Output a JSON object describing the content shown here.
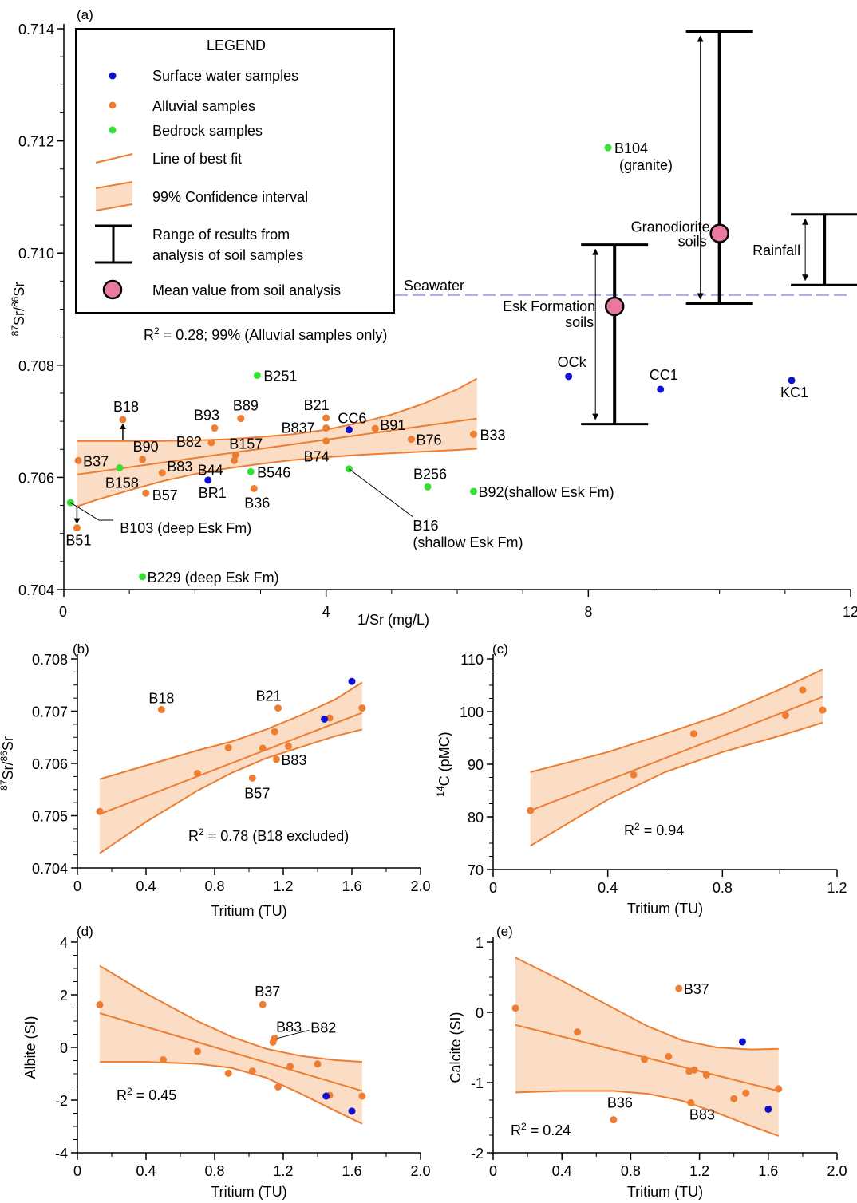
{
  "colors": {
    "orange": "#ED7D31",
    "blue": "#1010D0",
    "green": "#33E033",
    "band": "#FBDCC4",
    "pink": "#E9799E",
    "seawater": "#A9A9EE",
    "seawater_text": "#2233AA"
  },
  "chart_data": [
    {
      "panel_label": "(a)",
      "type": "scatter",
      "xlabel": "1/Sr (mg/L)",
      "ylabel": "87Sr/86Sr",
      "xlim": [
        0,
        12
      ],
      "ylim": [
        0.704,
        0.714
      ],
      "xticks": [
        "0",
        "4",
        "8",
        "12"
      ],
      "yticks": [
        "0.704",
        "0.706",
        "0.708",
        "0.710",
        "0.712",
        "0.714"
      ],
      "r2_text": "R² = 0.28; 99% (Alluvial samples only)",
      "legend": {
        "title": "LEGEND",
        "items": [
          "Surface water samples",
          "Alluvial samples",
          "Bedrock samples",
          "Line of best fit",
          "99% Confidence interval",
          "Range of results from",
          "analysis of soil samples",
          "Mean value from soil analysis"
        ]
      },
      "reference_line": {
        "label": "Seawater",
        "y": 0.70925
      },
      "fit": {
        "x": [
          0.2,
          6.3
        ],
        "y": [
          0.70605,
          0.70705
        ]
      },
      "band": {
        "x": [
          0.2,
          0.5,
          1,
          1.5,
          2,
          2.5,
          3,
          3.5,
          4,
          4.5,
          5,
          5.5,
          6,
          6.3
        ],
        "upper": [
          0.70665,
          0.70665,
          0.70665,
          0.70665,
          0.70666,
          0.70668,
          0.70672,
          0.70677,
          0.70685,
          0.70697,
          0.70712,
          0.70732,
          0.70757,
          0.70776
        ],
        "lower": [
          0.70548,
          0.7056,
          0.70577,
          0.70593,
          0.70606,
          0.70616,
          0.70624,
          0.70631,
          0.70636,
          0.7064,
          0.70643,
          0.70646,
          0.70649,
          0.70651
        ]
      },
      "surface_water": [
        {
          "x": 2.2,
          "y": 0.70595,
          "label": "BR1"
        },
        {
          "x": 4.35,
          "y": 0.70685,
          "label": "CC6"
        },
        {
          "x": 7.7,
          "y": 0.7078,
          "label": "OCk"
        },
        {
          "x": 9.1,
          "y": 0.70757,
          "label": "CC1"
        },
        {
          "x": 11.1,
          "y": 0.70773,
          "label": "KC1"
        }
      ],
      "alluvial": [
        {
          "x": 0.9,
          "y": 0.70703,
          "label": "B18"
        },
        {
          "x": 0.2,
          "y": 0.7051,
          "label": "B51"
        },
        {
          "x": 0.22,
          "y": 0.7063,
          "label": "B37"
        },
        {
          "x": 1.2,
          "y": 0.70632,
          "label": "B90"
        },
        {
          "x": 1.5,
          "y": 0.70608,
          "label": "B83"
        },
        {
          "x": 1.25,
          "y": 0.70572,
          "label": "B57"
        },
        {
          "x": 2.25,
          "y": 0.70662,
          "label": "B82"
        },
        {
          "x": 2.3,
          "y": 0.70688,
          "label": "B93"
        },
        {
          "x": 2.7,
          "y": 0.70705,
          "label": "B89"
        },
        {
          "x": 2.6,
          "y": 0.7063,
          "label": "B44"
        },
        {
          "x": 2.62,
          "y": 0.7064,
          "label": "B157"
        },
        {
          "x": 2.9,
          "y": 0.7058,
          "label": "B36"
        },
        {
          "x": 4.0,
          "y": 0.70706,
          "label": "B21"
        },
        {
          "x": 4.0,
          "y": 0.70688,
          "label": "B837"
        },
        {
          "x": 4.0,
          "y": 0.70665,
          "label": "B74"
        },
        {
          "x": 4.75,
          "y": 0.70687,
          "label": "B91"
        },
        {
          "x": 5.3,
          "y": 0.70668,
          "label": "B76"
        },
        {
          "x": 6.25,
          "y": 0.70677,
          "label": "B33"
        }
      ],
      "bedrock": [
        {
          "x": 0.1,
          "y": 0.70555,
          "label": "B103 (deep Esk Fm)"
        },
        {
          "x": 0.85,
          "y": 0.70617,
          "label": "B158"
        },
        {
          "x": 1.2,
          "y": 0.70423,
          "label": "B229 (deep Esk Fm)"
        },
        {
          "x": 2.85,
          "y": 0.7061,
          "label": "B546"
        },
        {
          "x": 2.95,
          "y": 0.70782,
          "label": "B251"
        },
        {
          "x": 4.35,
          "y": 0.70615,
          "label": "B16"
        },
        {
          "x": 5.55,
          "y": 0.70583,
          "label": "B256"
        },
        {
          "x": 6.25,
          "y": 0.70575,
          "label": "B92(shallow Esk Fm)"
        },
        {
          "x": 8.3,
          "y": 0.71188,
          "label": "B104"
        }
      ],
      "annotations": [
        "(granite)",
        "(shallow Esk Fm)",
        "Granodiorite",
        "soils",
        "Esk Formation",
        "soils",
        "Rainfall"
      ],
      "soil_ranges": [
        {
          "name": "Esk Formation soils",
          "x": 8.4,
          "min": 0.70695,
          "max": 0.71015,
          "mean": 0.70905
        },
        {
          "name": "Granodiorite soils",
          "x": 10.0,
          "min": 0.7091,
          "max": 0.71395,
          "mean": 0.71035
        },
        {
          "name": "Rainfall",
          "x": 11.6,
          "min": 0.70943,
          "max": 0.71069
        }
      ]
    },
    {
      "panel_label": "(b)",
      "type": "scatter",
      "xlabel": "Tritium (TU)",
      "ylabel": "87Sr/86Sr",
      "xlim": [
        0,
        2.0
      ],
      "ylim": [
        0.704,
        0.708
      ],
      "xticks": [
        "0",
        "0.4",
        "0.8",
        "1.2",
        "1.6",
        "2.0"
      ],
      "yticks": [
        "0.704",
        "0.705",
        "0.706",
        "0.707",
        "0.708"
      ],
      "r2_text": "R² = 0.78 (B18 excluded)",
      "fit": {
        "x": [
          0.13,
          1.66
        ],
        "y": [
          0.70503,
          0.70697
        ]
      },
      "band": {
        "x": [
          0.13,
          0.4,
          0.7,
          0.9,
          1.1,
          1.3,
          1.5,
          1.66
        ],
        "upper": [
          0.7057,
          0.70596,
          0.70625,
          0.70642,
          0.70665,
          0.70692,
          0.70722,
          0.70755
        ],
        "lower": [
          0.70428,
          0.70488,
          0.70548,
          0.70582,
          0.7061,
          0.70631,
          0.70652,
          0.70665
        ]
      },
      "alluvial": [
        {
          "x": 0.13,
          "y": 0.70508,
          "label": ""
        },
        {
          "x": 0.49,
          "y": 0.70703,
          "label": "B18"
        },
        {
          "x": 0.7,
          "y": 0.70581,
          "label": ""
        },
        {
          "x": 0.88,
          "y": 0.7063,
          "label": ""
        },
        {
          "x": 1.02,
          "y": 0.70572,
          "label": "B57"
        },
        {
          "x": 1.08,
          "y": 0.70629,
          "label": ""
        },
        {
          "x": 1.15,
          "y": 0.70661,
          "label": ""
        },
        {
          "x": 1.16,
          "y": 0.70608,
          "label": "B83"
        },
        {
          "x": 1.17,
          "y": 0.70706,
          "label": "B21"
        },
        {
          "x": 1.23,
          "y": 0.70633,
          "label": ""
        },
        {
          "x": 1.47,
          "y": 0.70687,
          "label": ""
        },
        {
          "x": 1.66,
          "y": 0.70706,
          "label": ""
        }
      ],
      "surface_water": [
        {
          "x": 1.44,
          "y": 0.70685,
          "label": ""
        },
        {
          "x": 1.6,
          "y": 0.70757,
          "label": ""
        }
      ]
    },
    {
      "panel_label": "(c)",
      "type": "scatter",
      "xlabel": "Tritium (TU)",
      "ylabel": "14C (pMC)",
      "xlim": [
        0,
        1.2
      ],
      "ylim": [
        70,
        110
      ],
      "xticks": [
        "0",
        "0.4",
        "0.8",
        "1.2"
      ],
      "yticks": [
        "70",
        "80",
        "90",
        "100",
        "110"
      ],
      "r2_text": "R² = 0.94",
      "fit": {
        "x": [
          0.13,
          1.15
        ],
        "y": [
          81.2,
          102.8
        ]
      },
      "band": {
        "x": [
          0.13,
          0.4,
          0.6,
          0.8,
          1.0,
          1.15
        ],
        "upper": [
          88.5,
          92.3,
          95.8,
          99.5,
          104.2,
          108.0
        ],
        "lower": [
          74.5,
          83.3,
          88.5,
          92.3,
          95.4,
          97.9
        ]
      },
      "alluvial": [
        {
          "x": 0.13,
          "y": 81.2
        },
        {
          "x": 0.49,
          "y": 88.0
        },
        {
          "x": 0.7,
          "y": 95.8
        },
        {
          "x": 1.02,
          "y": 99.3
        },
        {
          "x": 1.08,
          "y": 104.1
        },
        {
          "x": 1.15,
          "y": 100.3
        }
      ]
    },
    {
      "panel_label": "(d)",
      "type": "scatter",
      "xlabel": "Tritium (TU)",
      "ylabel": "Albite (SI)",
      "xlim": [
        0,
        2.0
      ],
      "ylim": [
        -4,
        4
      ],
      "xticks": [
        "0",
        "0.4",
        "0.8",
        "1.2",
        "1.6",
        "2.0"
      ],
      "yticks": [
        "-4",
        "-2",
        "0",
        "2",
        "4"
      ],
      "r2_text": "R² = 0.45",
      "fit": {
        "x": [
          0.13,
          1.66
        ],
        "y": [
          1.3,
          -1.65
        ]
      },
      "band": {
        "x": [
          0.13,
          0.4,
          0.7,
          0.9,
          1.1,
          1.3,
          1.5,
          1.66
        ],
        "upper": [
          3.1,
          2.05,
          1.0,
          0.4,
          -0.05,
          -0.32,
          -0.48,
          -0.55
        ],
        "lower": [
          -0.55,
          -0.55,
          -0.62,
          -0.78,
          -1.15,
          -1.75,
          -2.4,
          -2.9
        ]
      },
      "alluvial": [
        {
          "x": 0.13,
          "y": 1.62,
          "label": ""
        },
        {
          "x": 0.5,
          "y": -0.47,
          "label": ""
        },
        {
          "x": 0.7,
          "y": -0.15,
          "label": ""
        },
        {
          "x": 0.88,
          "y": -0.98,
          "label": ""
        },
        {
          "x": 1.02,
          "y": -0.9,
          "label": ""
        },
        {
          "x": 1.08,
          "y": 1.63,
          "label": "B37"
        },
        {
          "x": 1.14,
          "y": 0.2,
          "label": "B83"
        },
        {
          "x": 1.15,
          "y": 0.35,
          "label": "B82"
        },
        {
          "x": 1.17,
          "y": -1.5,
          "label": ""
        },
        {
          "x": 1.24,
          "y": -0.72,
          "label": ""
        },
        {
          "x": 1.4,
          "y": -0.63,
          "label": ""
        },
        {
          "x": 1.47,
          "y": -1.82,
          "label": ""
        },
        {
          "x": 1.66,
          "y": -1.85,
          "label": ""
        }
      ],
      "surface_water": [
        {
          "x": 1.45,
          "y": -1.85,
          "label": ""
        },
        {
          "x": 1.6,
          "y": -2.42,
          "label": ""
        }
      ]
    },
    {
      "panel_label": "(e)",
      "type": "scatter",
      "xlabel": "Tritium (TU)",
      "ylabel": "Calcite (SI)",
      "xlim": [
        0,
        2.0
      ],
      "ylim": [
        -2,
        1
      ],
      "xticks": [
        "0",
        "0.4",
        "0.8",
        "1.2",
        "1.6",
        "2.0"
      ],
      "yticks": [
        "-2",
        "-1",
        "0",
        "1"
      ],
      "r2_text": "R² = 0.24",
      "fit": {
        "x": [
          0.13,
          1.66
        ],
        "y": [
          -0.18,
          -1.12
        ]
      },
      "band": {
        "x": [
          0.13,
          0.4,
          0.7,
          0.9,
          1.1,
          1.3,
          1.5,
          1.66
        ],
        "upper": [
          0.78,
          0.45,
          0.06,
          -0.2,
          -0.4,
          -0.5,
          -0.53,
          -0.52
        ],
        "lower": [
          -1.14,
          -1.12,
          -1.12,
          -1.16,
          -1.26,
          -1.43,
          -1.62,
          -1.76
        ]
      },
      "alluvial": [
        {
          "x": 0.13,
          "y": 0.06,
          "label": ""
        },
        {
          "x": 0.49,
          "y": -0.28,
          "label": ""
        },
        {
          "x": 0.7,
          "y": -1.53,
          "label": "B36"
        },
        {
          "x": 0.88,
          "y": -0.67,
          "label": ""
        },
        {
          "x": 1.02,
          "y": -0.63,
          "label": ""
        },
        {
          "x": 1.08,
          "y": 0.34,
          "label": "B37"
        },
        {
          "x": 1.14,
          "y": -0.84,
          "label": ""
        },
        {
          "x": 1.15,
          "y": -1.29,
          "label": "B83"
        },
        {
          "x": 1.17,
          "y": -0.82,
          "label": ""
        },
        {
          "x": 1.24,
          "y": -0.89,
          "label": ""
        },
        {
          "x": 1.4,
          "y": -1.23,
          "label": ""
        },
        {
          "x": 1.47,
          "y": -1.15,
          "label": ""
        },
        {
          "x": 1.66,
          "y": -1.09,
          "label": ""
        }
      ],
      "surface_water": [
        {
          "x": 1.45,
          "y": -0.42,
          "label": ""
        },
        {
          "x": 1.6,
          "y": -1.38,
          "label": ""
        }
      ]
    }
  ]
}
